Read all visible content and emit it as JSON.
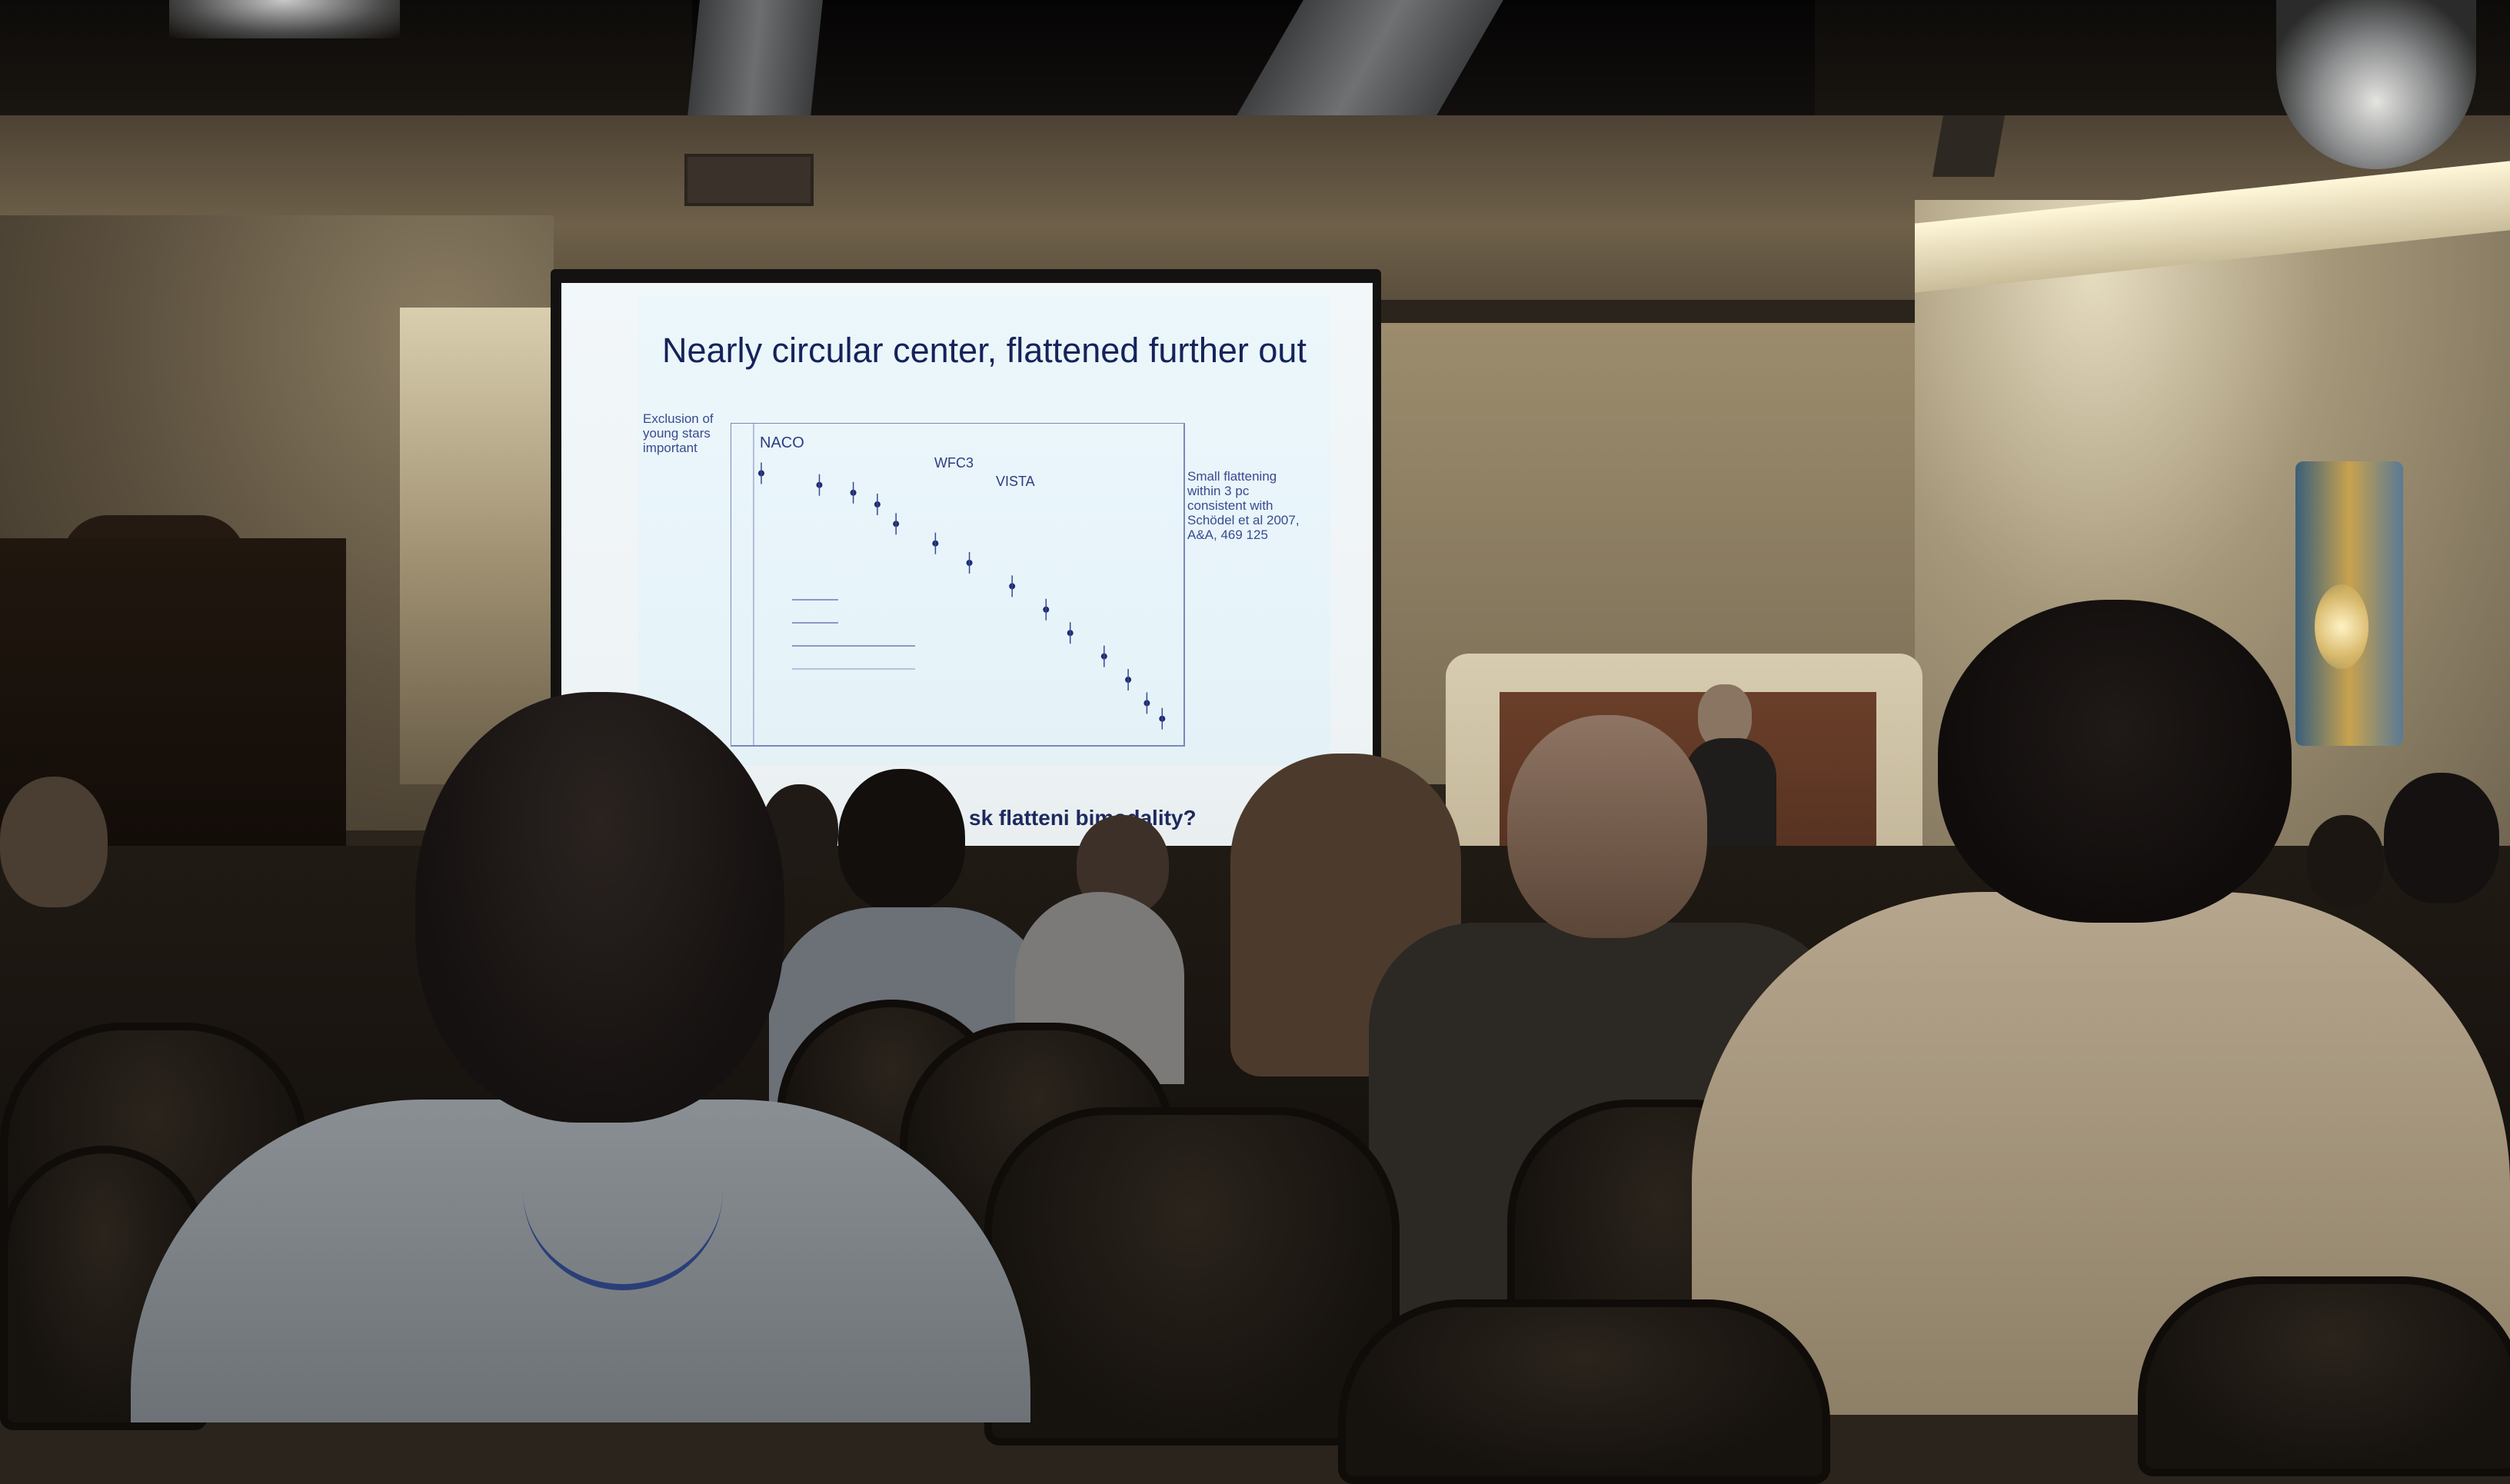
{
  "scene": {
    "description_type": "photo of a conference talk in a dim room, projector screen shows a slide",
    "slide": {
      "title": "Nearly circular center, flattened further out",
      "note_left": "Exclusion of young stars important",
      "note_right": "Small flattening within 3 pc consistent with Schödel et al 2007, A&A, 469 125",
      "label_naco": "NACO",
      "label_wfc3": "WFC3",
      "label_vista": "VISTA",
      "footer_partial": "sk   flatteni   bimodality?"
    },
    "colors": {
      "slide_title": "#14235a",
      "slide_bg": "#e6f4fa",
      "room_warm": "#8a7c62"
    }
  },
  "chart_data": {
    "type": "scatter",
    "title": "",
    "xlabel": "",
    "ylabel": "",
    "series": [
      {
        "name": "NACO",
        "points": [
          [
            1,
            0.93
          ],
          [
            2,
            0.9
          ],
          [
            3,
            0.88
          ],
          [
            4,
            0.85
          ]
        ]
      },
      {
        "name": "WFC3",
        "points": [
          [
            5,
            0.8
          ],
          [
            8,
            0.75
          ],
          [
            12,
            0.7
          ],
          [
            20,
            0.64
          ],
          [
            30,
            0.58
          ]
        ]
      },
      {
        "name": "VISTA",
        "points": [
          [
            40,
            0.52
          ],
          [
            60,
            0.46
          ],
          [
            80,
            0.4
          ],
          [
            100,
            0.34
          ],
          [
            120,
            0.3
          ]
        ]
      }
    ]
  }
}
